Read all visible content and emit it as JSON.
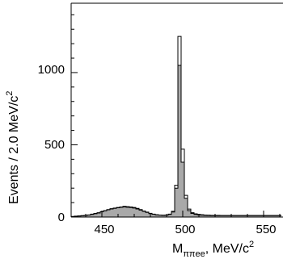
{
  "chart_data": {
    "type": "histogram",
    "xlim": [
      431,
      562
    ],
    "ylim": [
      0,
      1480
    ],
    "bin_width": 2.0,
    "xlabel": {
      "main": "M",
      "sub": "ππee",
      "rest": ", MeV/c",
      "sup": "2"
    },
    "ylabel": {
      "main": "Events / 2.0 MeV/c",
      "sup": "2"
    },
    "x_ticks": [
      450,
      500,
      550
    ],
    "y_ticks": [
      0,
      500,
      1000
    ],
    "x_tick_labels": [
      "450",
      "500",
      "550"
    ],
    "y_tick_labels": [
      "0",
      "500",
      "1000"
    ],
    "series": [
      {
        "kind": "step-outline",
        "style": "open",
        "x": [
          432,
          434,
          436,
          438,
          440,
          442,
          444,
          446,
          448,
          450,
          452,
          454,
          456,
          458,
          460,
          462,
          464,
          466,
          468,
          470,
          472,
          474,
          476,
          478,
          480,
          482,
          484,
          486,
          488,
          490,
          492,
          494,
          496,
          498,
          500,
          502,
          504,
          506,
          508,
          510,
          512,
          514,
          516,
          518,
          520,
          522,
          524,
          526,
          528,
          530,
          532,
          534,
          536,
          538,
          540,
          542,
          544,
          546,
          548,
          550,
          552,
          554,
          556,
          558,
          560
        ],
        "values": [
          4,
          6,
          8,
          10,
          12,
          15,
          20,
          25,
          30,
          38,
          45,
          52,
          58,
          62,
          66,
          70,
          74,
          72,
          70,
          66,
          60,
          52,
          42,
          34,
          26,
          20,
          16,
          14,
          13,
          14,
          20,
          40,
          220,
          1250,
          470,
          150,
          55,
          30,
          22,
          18,
          16,
          14,
          13,
          12,
          12,
          12,
          11,
          11,
          11,
          11,
          11,
          11,
          11,
          11,
          11,
          11,
          11,
          11,
          11,
          11,
          11,
          11,
          11,
          11,
          11
        ]
      },
      {
        "kind": "filled-histogram",
        "style": "gray",
        "color": "#a9a9a9",
        "x": [
          432,
          434,
          436,
          438,
          440,
          442,
          444,
          446,
          448,
          450,
          452,
          454,
          456,
          458,
          460,
          462,
          464,
          466,
          468,
          470,
          472,
          474,
          476,
          478,
          480,
          482,
          484,
          486,
          488,
          490,
          492,
          494,
          496,
          498,
          500,
          502,
          504,
          506,
          508,
          510,
          512,
          514,
          516,
          518,
          520,
          522,
          524,
          526,
          528,
          530,
          532,
          534,
          536,
          538,
          540,
          542,
          544,
          546,
          548,
          550,
          552,
          554,
          556,
          558,
          560
        ],
        "values": [
          3,
          5,
          7,
          9,
          11,
          14,
          18,
          23,
          28,
          36,
          43,
          50,
          56,
          60,
          64,
          68,
          70,
          68,
          66,
          62,
          56,
          48,
          40,
          32,
          24,
          19,
          15,
          13,
          12,
          13,
          18,
          35,
          200,
          1050,
          380,
          130,
          45,
          25,
          18,
          15,
          13,
          12,
          11,
          10,
          10,
          10,
          10,
          10,
          10,
          10,
          10,
          10,
          10,
          10,
          10,
          10,
          10,
          10,
          10,
          10,
          10,
          10,
          10,
          10,
          10
        ]
      }
    ]
  }
}
